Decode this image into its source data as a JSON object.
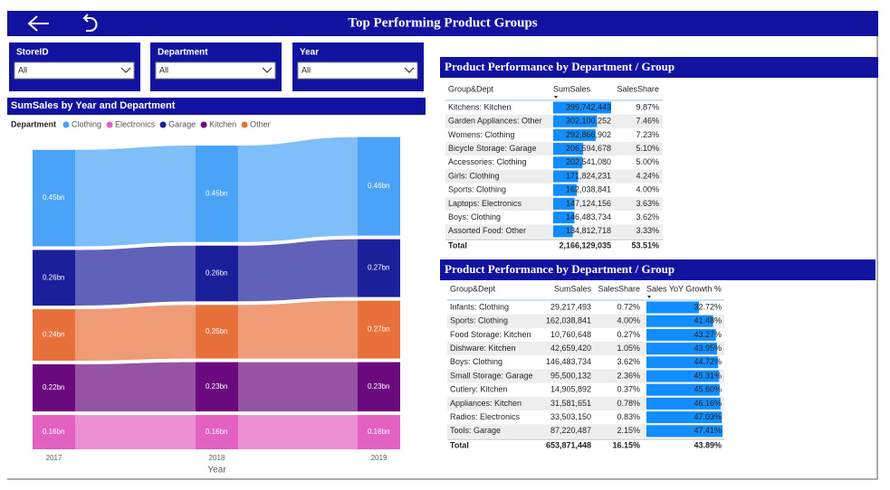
{
  "header": {
    "title": "Top Performing Product Groups"
  },
  "slicers": [
    {
      "label": "StoreID",
      "value": "All"
    },
    {
      "label": "Department",
      "value": "All"
    },
    {
      "label": "Year",
      "value": "All"
    }
  ],
  "chart_data": {
    "type": "ribbon",
    "title": "SumSales by Year and Department",
    "legend_title": "Department",
    "x_label": "Year",
    "categories": [
      "2017",
      "2018",
      "2019"
    ],
    "series": [
      {
        "name": "Clothing",
        "color": "#4aa3f7",
        "values": [
          0.45,
          0.45,
          0.46
        ],
        "value_labels": [
          "0.45bn",
          "0.45bn",
          "0.46bn"
        ]
      },
      {
        "name": "Electronics",
        "color": "#e361c0",
        "values": [
          0.16,
          0.16,
          0.16
        ],
        "value_labels": [
          "0.16bn",
          "0.16bn",
          "0.16bn"
        ]
      },
      {
        "name": "Garage",
        "color": "#1b1f9a",
        "values": [
          0.26,
          0.26,
          0.27
        ],
        "value_labels": [
          "0.26bn",
          "0.26bn",
          "0.27bn"
        ]
      },
      {
        "name": "Kitchen",
        "color": "#6a0a7e",
        "values": [
          0.22,
          0.23,
          0.23
        ],
        "value_labels": [
          "0.22bn",
          "0.23bn",
          "0.23bn"
        ]
      },
      {
        "name": "Other",
        "color": "#e8703a",
        "values": [
          0.24,
          0.25,
          0.27
        ],
        "value_labels": [
          "0.24bn",
          "0.25bn",
          "0.27bn"
        ]
      }
    ]
  },
  "tables": [
    {
      "title": "Product Performance by Department / Group",
      "columns": [
        "Group&Dept",
        "SumSales",
        "SalesShare"
      ],
      "rows": [
        [
          "Kitchens: Kitchen",
          "399,742,443",
          "9.87%"
        ],
        [
          "Garden Appliances: Other",
          "302,100,252",
          "7.46%"
        ],
        [
          "Womens: Clothing",
          "292,866,902",
          "7.23%"
        ],
        [
          "Bicycle Storage: Garage",
          "206,594,678",
          "5.10%"
        ],
        [
          "Accessories: Clothing",
          "202,541,080",
          "5.00%"
        ],
        [
          "Girls: Clothing",
          "171,824,231",
          "4.24%"
        ],
        [
          "Sports: Clothing",
          "162,038,841",
          "4.00%"
        ],
        [
          "Laptops: Electronics",
          "147,124,156",
          "3.63%"
        ],
        [
          "Boys: Clothing",
          "146,483,734",
          "3.62%"
        ],
        [
          "Assorted Food: Other",
          "134,812,718",
          "3.33%"
        ]
      ],
      "total": [
        "Total",
        "2,166,129,035",
        "53.51%"
      ]
    },
    {
      "title": "Product Performance by Department / Group",
      "columns": [
        "Group&Dept",
        "SumSales",
        "SalesShare",
        "Sales YoY Growth %"
      ],
      "rows": [
        [
          "Infants: Clothing",
          "29,217,493",
          "0.72%",
          "32.72%"
        ],
        [
          "Sports: Clothing",
          "162,038,841",
          "4.00%",
          "41.48%"
        ],
        [
          "Food Storage: Kitchen",
          "10,760,648",
          "0.27%",
          "43.27%"
        ],
        [
          "Dishware: Kitchen",
          "42,659,420",
          "1.05%",
          "43.95%"
        ],
        [
          "Boys: Clothing",
          "146,483,734",
          "3.62%",
          "44.72%"
        ],
        [
          "Small Storage: Garage",
          "95,500,132",
          "2.36%",
          "45.31%"
        ],
        [
          "Cutlery: Kitchen",
          "14,905,892",
          "0.37%",
          "45.60%"
        ],
        [
          "Appliances: Kitchen",
          "31,581,651",
          "0.78%",
          "46.16%"
        ],
        [
          "Radios: Electronics",
          "33,503,150",
          "0.83%",
          "47.03%"
        ],
        [
          "Tools: Garage",
          "87,220,487",
          "2.15%",
          "47.41%"
        ]
      ],
      "total": [
        "Total",
        "653,871,448",
        "16.15%",
        "43.89%"
      ]
    }
  ]
}
